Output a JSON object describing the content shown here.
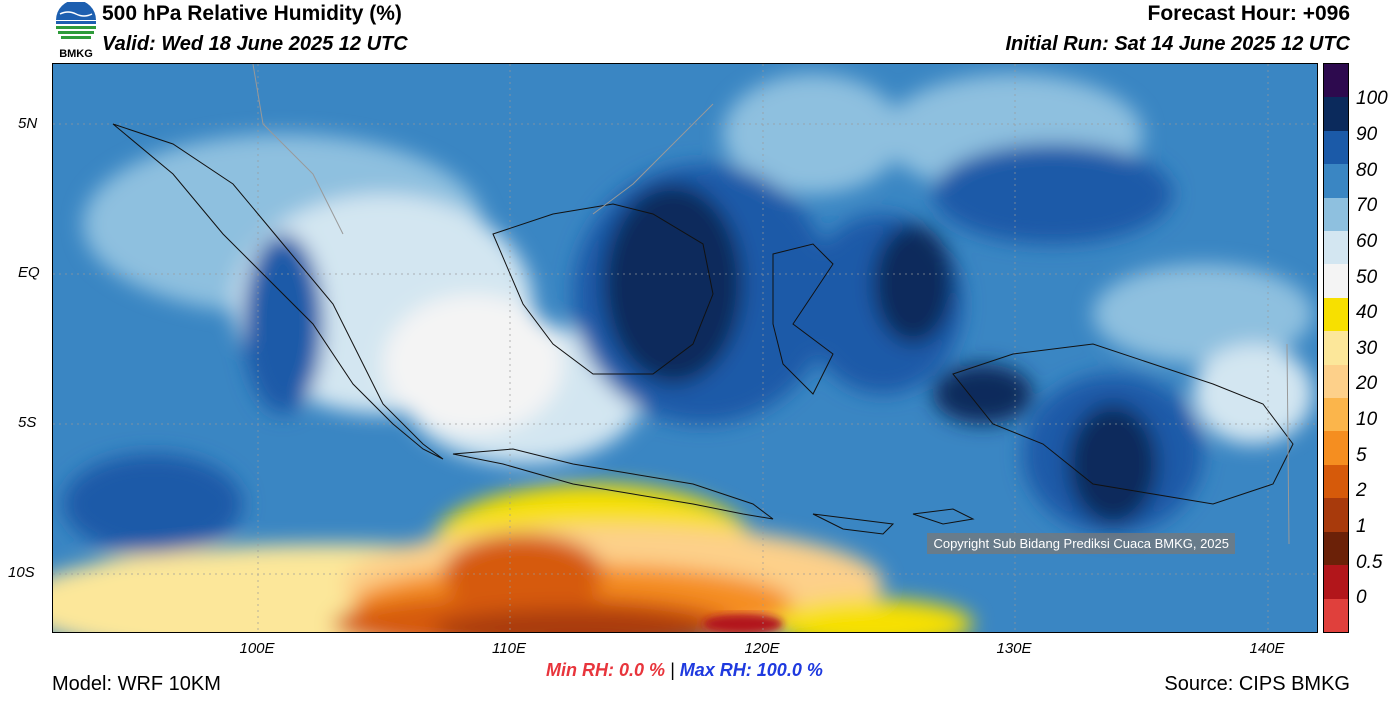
{
  "header": {
    "title": "500 hPa Relative Humidity (%)",
    "valid": "Valid: Wed 18 June 2025 12 UTC",
    "forecast_hour": "Forecast Hour: +096",
    "initial_run": "Initial Run: Sat 14 June 2025 12 UTC"
  },
  "logo": {
    "text": "BMKG",
    "icon": "bmkg-logo-icon"
  },
  "map": {
    "lat_labels": [
      "5N",
      "EQ",
      "5S",
      "10S"
    ],
    "lon_labels": [
      "100E",
      "110E",
      "120E",
      "130E",
      "140E"
    ],
    "copyright": "Copyright Sub Bidang Prediksi Cuaca BMKG, 2025"
  },
  "colorbar": {
    "labels": [
      "100",
      "90",
      "80",
      "70",
      "60",
      "50",
      "40",
      "30",
      "20",
      "10",
      "5",
      "2",
      "1",
      "0.5",
      "0"
    ],
    "colors": [
      "#2d0a4e",
      "#0b2a5c",
      "#1b5aa8",
      "#3a86c3",
      "#8ec0df",
      "#d3e6f1",
      "#f4f4f4",
      "#f7e000",
      "#fce79a",
      "#fdd08a",
      "#fbb54b",
      "#f58e20",
      "#d65a0a",
      "#a83a0c",
      "#6b2108",
      "#b2161b",
      "#e0403c"
    ]
  },
  "footer": {
    "min_rh_label": "Min RH:",
    "min_rh_value": "0.0 %",
    "separator": "|",
    "max_rh_label": "Max RH:",
    "max_rh_value": "100.0 %",
    "model": "Model: WRF 10KM",
    "source": "Source: CIPS BMKG"
  }
}
